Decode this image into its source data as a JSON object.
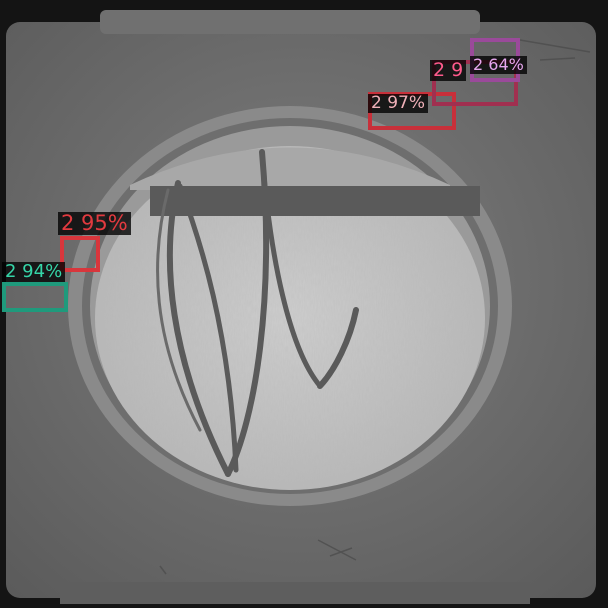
{
  "image": {
    "subject": "surgical-needle-in-circular-well-grayscale",
    "palette": {
      "dark_frame": "#141414",
      "plate": "#6a6a6a",
      "plate_light": "#808080",
      "well_rim": "#8a8a8a",
      "well_floor": "#c2c2c2",
      "bar": "#5a5a5a",
      "needle": "#5c5c5c"
    }
  },
  "detections": [
    {
      "id": "det-1",
      "label": "2 95%",
      "color": "#d8363c",
      "text_color": "#e23a3f"
    },
    {
      "id": "det-2",
      "label": "2 94%",
      "color": "#1f9a7c",
      "text_color": "#35d6a8"
    },
    {
      "id": "det-3",
      "label": "2 97%",
      "color": "#c8303a",
      "text_color": "#f0b0b8"
    },
    {
      "id": "det-4",
      "label": "2 9",
      "color": "#a03050",
      "text_color": "#ff5a8c"
    },
    {
      "id": "det-5",
      "label": "2 64%",
      "color": "#9a4a9a",
      "text_color": "#e6a6ee"
    }
  ]
}
